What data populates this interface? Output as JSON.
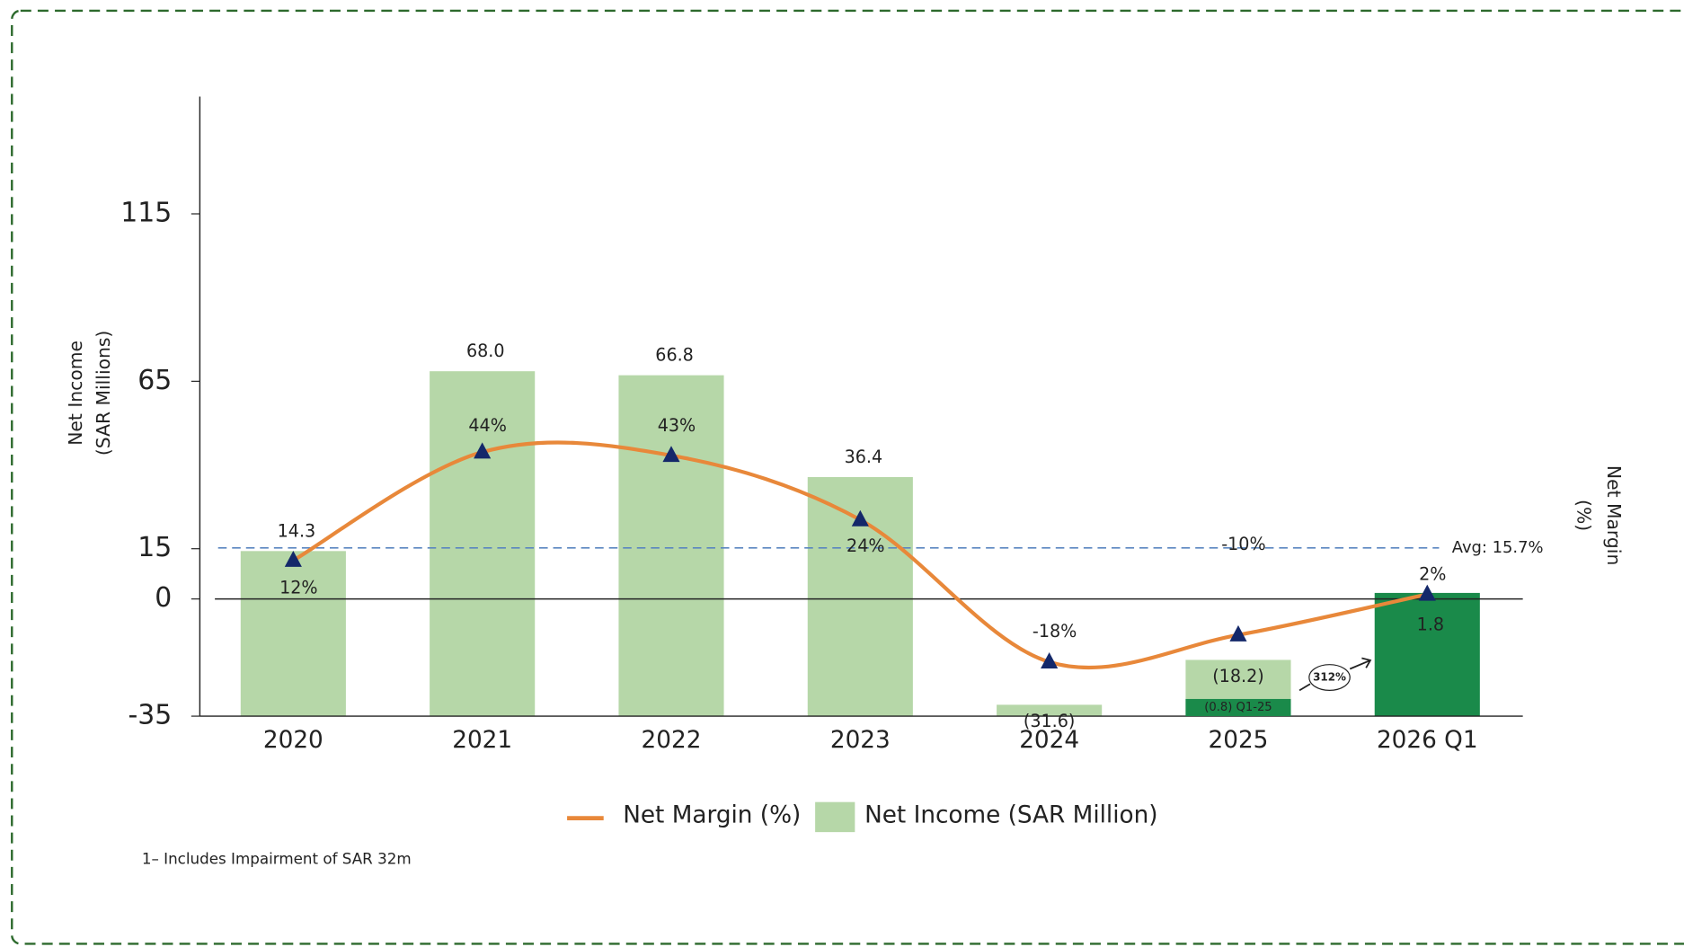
{
  "chart_data": {
    "type": "bar",
    "y_label": [
      "Net Income",
      "(SAR Millions)"
    ],
    "y2_label": [
      "Net Margin",
      "(%)"
    ],
    "categories": [
      "2020",
      "2021",
      "2022",
      "2023",
      "2024",
      "2025",
      "2026 Q1"
    ],
    "series": [
      {
        "name": "Net Margin (%)",
        "type": "line",
        "axis": "y2",
        "color": "#e8883a",
        "marker_color": "#14286a",
        "label_color": "#4a7fc1",
        "values": [
          12,
          44,
          43,
          24,
          -18,
          -10,
          2
        ],
        "value_labels": [
          "12%",
          "44%",
          "43%",
          "24%",
          "-18%",
          "-10%",
          "2%"
        ]
      },
      {
        "name": "Net Income (SAR Million)",
        "type": "bar",
        "color": "#b6d7a8",
        "colors": [
          "#b6d7a8",
          "#b6d7a8",
          "#b6d7a8",
          "#b6d7a8",
          "#b6d7a8",
          "#b6d7a8",
          "#1a8a4a"
        ],
        "values": [
          14.3,
          68.0,
          66.8,
          36.4,
          -31.6,
          -18.2,
          1.8
        ],
        "value_labels": [
          "14.3",
          "68.0",
          "66.8",
          "36.4",
          "(31.6)",
          "(18.2)",
          "1.8"
        ]
      }
    ],
    "ylim": [
      -35,
      150
    ],
    "yticks": [
      -35,
      0,
      15,
      65,
      115
    ],
    "y2lim": [
      -34,
      149
    ],
    "avg_line": {
      "value": 15.7,
      "label": "Avg: 15.7%"
    },
    "annotations": [
      "(0.8) Q1-25",
      "312%"
    ],
    "footnote": "1– Includes Impairment of SAR 32m"
  }
}
